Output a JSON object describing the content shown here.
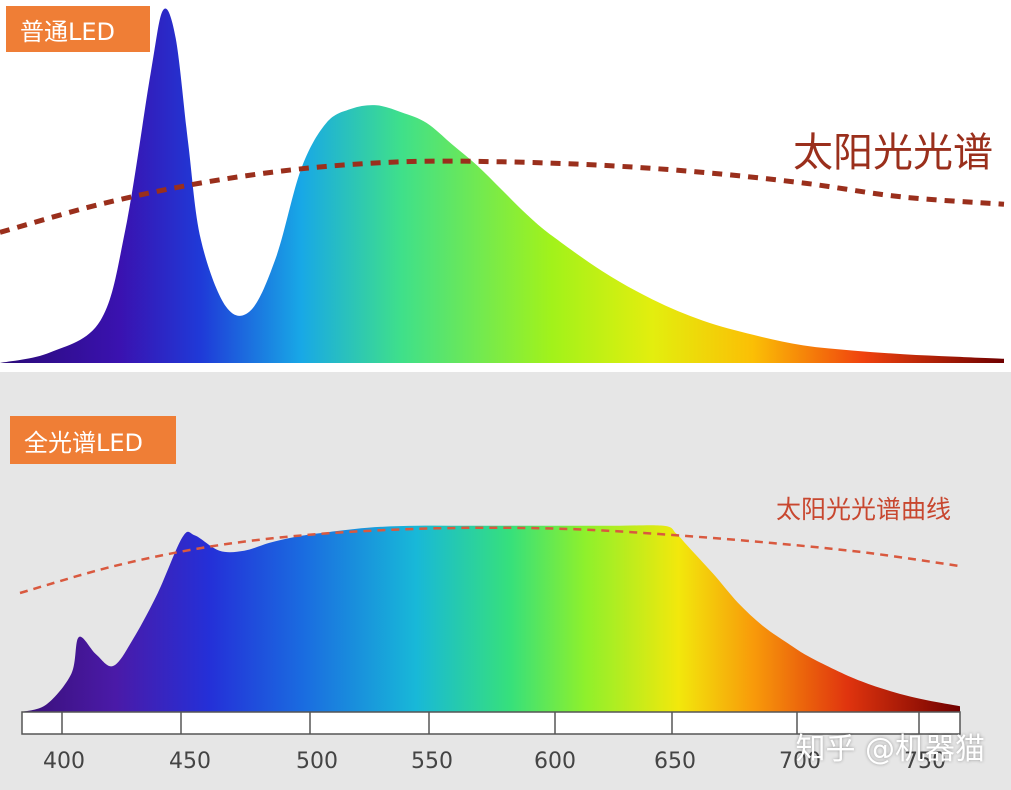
{
  "chart_data": [
    {
      "type": "area",
      "panel": "top",
      "title": "普通LED",
      "series": [
        {
          "x": [
            380,
            400,
            420,
            430,
            440,
            445,
            450,
            455,
            460,
            470,
            480,
            490,
            500,
            510,
            520,
            530,
            540,
            550,
            560,
            570,
            580,
            590,
            600,
            620,
            640,
            660,
            680,
            700,
            720,
            740,
            760,
            780
          ],
          "values": [
            0.0,
            0.03,
            0.12,
            0.38,
            0.82,
            1.0,
            0.92,
            0.62,
            0.35,
            0.16,
            0.15,
            0.3,
            0.55,
            0.68,
            0.72,
            0.73,
            0.71,
            0.68,
            0.62,
            0.56,
            0.49,
            0.42,
            0.36,
            0.26,
            0.18,
            0.12,
            0.08,
            0.05,
            0.035,
            0.025,
            0.018,
            0.012
          ]
        },
        {
          "name": "太阳光光谱",
          "x": [
            380,
            420,
            460,
            500,
            540,
            580,
            620,
            660,
            700,
            740,
            780
          ],
          "values": [
            0.37,
            0.45,
            0.51,
            0.55,
            0.57,
            0.57,
            0.56,
            0.54,
            0.51,
            0.47,
            0.45
          ]
        }
      ]
    },
    {
      "type": "area",
      "panel": "bottom",
      "title": "全光谱LED",
      "categories": [
        "400",
        "450",
        "500",
        "550",
        "600",
        "650",
        "700",
        "750"
      ],
      "series": [
        {
          "x": [
            380,
            390,
            400,
            403,
            410,
            417,
            425,
            435,
            445,
            450,
            460,
            470,
            480,
            490,
            500,
            520,
            540,
            560,
            580,
            600,
            620,
            640,
            645,
            650,
            660,
            670,
            680,
            690,
            700,
            720,
            740,
            760
          ],
          "values": [
            0.0,
            0.04,
            0.2,
            0.39,
            0.3,
            0.24,
            0.38,
            0.62,
            0.91,
            0.92,
            0.84,
            0.84,
            0.88,
            0.91,
            0.93,
            0.96,
            0.97,
            0.97,
            0.97,
            0.97,
            0.97,
            0.97,
            0.93,
            0.86,
            0.72,
            0.57,
            0.45,
            0.36,
            0.28,
            0.16,
            0.08,
            0.03
          ]
        },
        {
          "name": "太阳光光谱曲线",
          "x": [
            380,
            420,
            460,
            500,
            540,
            580,
            620,
            660,
            700,
            740,
            780
          ],
          "values": [
            0.62,
            0.76,
            0.86,
            0.92,
            0.95,
            0.96,
            0.95,
            0.92,
            0.88,
            0.83,
            0.76
          ]
        }
      ]
    }
  ],
  "watermark": "知乎 @机器猫",
  "colors": {
    "tag_bg": "#ef7e36",
    "sun_curve_top": "#9a2f1c",
    "sun_curve_bottom": "#d9593f"
  }
}
